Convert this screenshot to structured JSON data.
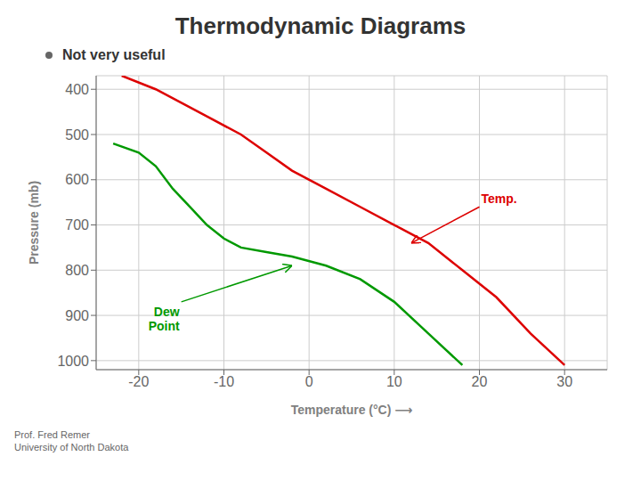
{
  "chart_data": {
    "type": "line",
    "title": "Thermodynamic Diagrams",
    "subtitle": "Not very useful",
    "x_label": "Temperature (°C)  ⟶",
    "y_label": "Pressure (mb)",
    "xlim": [
      -25,
      35
    ],
    "ylim": [
      1020,
      370
    ],
    "xticks": [
      -20,
      -10,
      0,
      10,
      20,
      30
    ],
    "yticks": [
      400,
      500,
      600,
      700,
      800,
      900,
      1000
    ],
    "grid": true,
    "series": [
      {
        "color": "#dd0000",
        "x": [
          -22,
          -18,
          -15,
          -12,
          -8,
          -5,
          -2,
          2,
          6,
          10,
          14,
          18,
          22,
          26,
          30
        ],
        "values": [
          370,
          400,
          430,
          460,
          500,
          540,
          580,
          620,
          660,
          700,
          740,
          800,
          860,
          940,
          1010
        ]
      },
      {
        "color": "#009900",
        "x": [
          -23,
          -20,
          -18,
          -16,
          -14,
          -12,
          -10,
          -8,
          -5,
          -2,
          2,
          6,
          10,
          14,
          18
        ],
        "values": [
          520,
          540,
          570,
          620,
          660,
          700,
          730,
          750,
          760,
          770,
          790,
          820,
          870,
          940,
          1010
        ]
      }
    ],
    "annotations": [
      {
        "text": "Temp.",
        "x": 20,
        "y": 660,
        "arrow_to": [
          12,
          740
        ]
      },
      {
        "text": "Dew\nPoint",
        "x": -15,
        "y": 870,
        "arrow_to": [
          -2,
          790
        ]
      }
    ],
    "footer": [
      "Prof. Fred Remer",
      "University of North Dakota"
    ]
  }
}
